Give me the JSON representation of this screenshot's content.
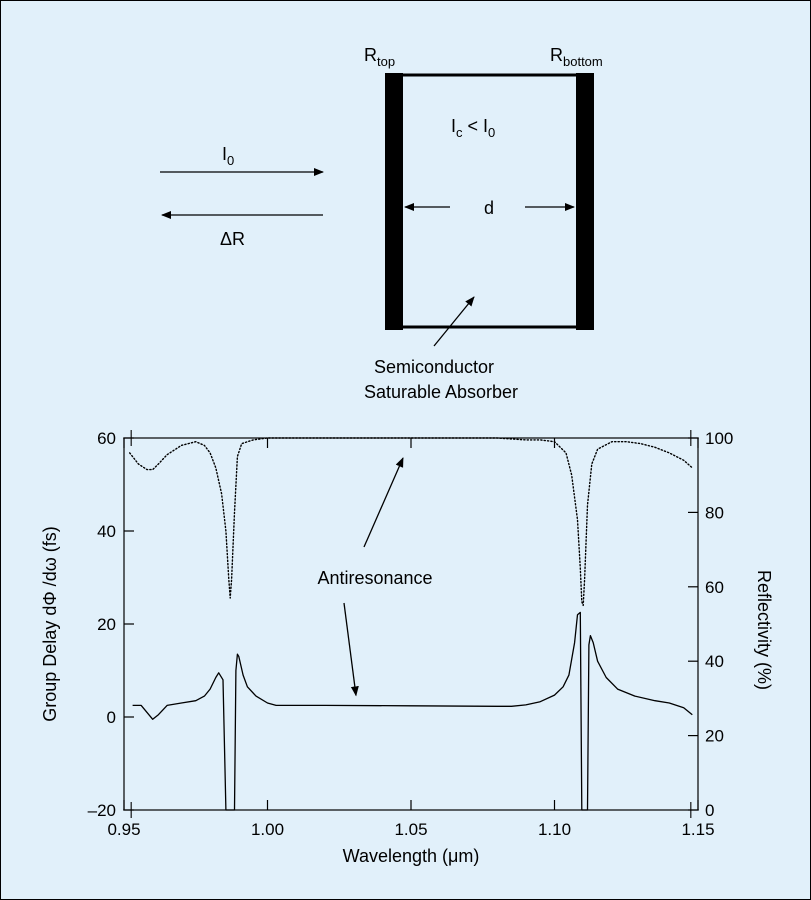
{
  "diagram": {
    "r_top": {
      "main": "R",
      "sub": "top"
    },
    "r_bottom": {
      "main": "R",
      "sub": "bottom"
    },
    "cavity_intensity": {
      "i1": "I",
      "sub1": "c",
      "op": " < I",
      "sub2": "0"
    },
    "incident": {
      "main": "I",
      "sub": "0"
    },
    "reflected_label": "ΔR",
    "thickness_label": "d",
    "absorber_label_line1": "Semiconductor",
    "absorber_label_line2": "Saturable Absorber"
  },
  "colors": {
    "background": "#e1f0fa",
    "ink": "#000000"
  },
  "chart_data": {
    "type": "line",
    "xlabel": "Wavelength (μm)",
    "ylabel": "Group Delay dΦ /dω (fs)",
    "y2label": "Reflectivity (%)",
    "xlim": [
      0.95,
      1.15
    ],
    "ylim": [
      -20,
      60
    ],
    "y2lim": [
      0,
      100
    ],
    "x_ticks": [
      "0.95",
      "1.00",
      "1.05",
      "1.10",
      "1.15"
    ],
    "y_ticks": [
      "–20",
      "0",
      "20",
      "40",
      "60"
    ],
    "y2_ticks": [
      "0",
      "20",
      "40",
      "60",
      "80",
      "100"
    ],
    "annotation": "Antiresonance",
    "annotation_targets": [
      {
        "x": 1.05,
        "y2": 100
      },
      {
        "x": 1.05,
        "y": 2.5
      }
    ],
    "series": [
      {
        "axis": "left",
        "style": "solid",
        "x": [
          0.953,
          0.956,
          0.958,
          0.96,
          0.962,
          0.965,
          0.97,
          0.975,
          0.978,
          0.98,
          0.982,
          0.983,
          0.9845,
          0.9855,
          0.986,
          0.9865,
          0.9875,
          0.9885,
          0.989,
          0.9895,
          0.99,
          0.9915,
          0.993,
          0.996,
          1.0,
          1.003,
          1.02,
          1.05,
          1.08,
          1.085,
          1.09,
          1.095,
          1.1,
          1.103,
          1.105,
          1.107,
          1.108,
          1.109,
          1.1095,
          1.1105,
          1.1115,
          1.112,
          1.1125,
          1.1135,
          1.115,
          1.118,
          1.122,
          1.128,
          1.135,
          1.14,
          1.145,
          1.148
        ],
        "y": [
          2.5,
          2.5,
          1.0,
          -0.5,
          0.5,
          2.5,
          3.0,
          3.5,
          4.5,
          6.0,
          8.5,
          9.5,
          8.0,
          -25.0,
          -25.0,
          -25.0,
          -25.0,
          -25.0,
          10.0,
          13.5,
          13.0,
          9.0,
          6.5,
          4.5,
          3.0,
          2.5,
          2.5,
          2.4,
          2.3,
          2.3,
          2.6,
          3.3,
          4.7,
          6.5,
          9.0,
          16.0,
          22.0,
          22.5,
          -25.0,
          -25.0,
          -25.0,
          15.5,
          17.5,
          16.0,
          12.0,
          8.5,
          6.0,
          4.5,
          3.5,
          3.0,
          2.0,
          0.5
        ]
      },
      {
        "axis": "right",
        "style": "dotted",
        "x": [
          0.952,
          0.955,
          0.958,
          0.96,
          0.962,
          0.965,
          0.97,
          0.975,
          0.978,
          0.98,
          0.982,
          0.984,
          0.9855,
          0.9865,
          0.987,
          0.9875,
          0.9885,
          0.9895,
          0.991,
          0.995,
          1.0,
          1.02,
          1.05,
          1.08,
          1.09,
          1.095,
          1.1,
          1.104,
          1.106,
          1.108,
          1.109,
          1.1095,
          1.11,
          1.1105,
          1.1115,
          1.113,
          1.115,
          1.12,
          1.125,
          1.13,
          1.135,
          1.14,
          1.145,
          1.148
        ],
        "y": [
          96.0,
          93.0,
          91.5,
          91.5,
          93.0,
          95.5,
          98.0,
          99.0,
          98.0,
          96.0,
          92.0,
          85.0,
          75.0,
          62.0,
          57.0,
          62.0,
          80.0,
          95.0,
          98.5,
          99.5,
          100.0,
          100.0,
          100.0,
          100.0,
          99.5,
          99.5,
          99.0,
          96.0,
          90.0,
          78.0,
          65.0,
          56.0,
          55.0,
          62.0,
          82.0,
          93.0,
          97.0,
          99.0,
          99.0,
          98.5,
          97.5,
          96.0,
          94.0,
          92.0
        ]
      }
    ]
  }
}
